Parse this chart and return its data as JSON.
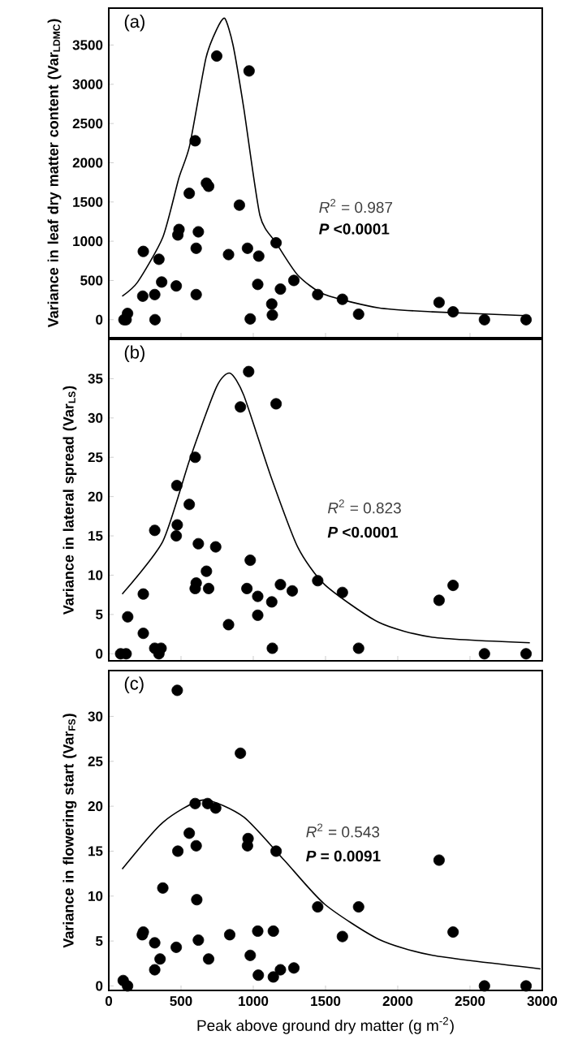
{
  "chart_data": [
    {
      "type": "scatter",
      "ylabel": "Variance in leaf dry matter content (Var$_{LDMC}$)",
      "xlim": [
        0,
        3000
      ],
      "ylim": [
        -230,
        3970
      ],
      "xticks": [
        0,
        500,
        1000,
        1500,
        2000,
        2500,
        3000
      ],
      "yticks": [
        0,
        500,
        1000,
        1500,
        2000,
        2500,
        3000,
        3500
      ],
      "tick_labels": "y",
      "annotations": [
        "(a)",
        "*R*$^{2}$ = 0.987",
        "*P* <0.0001"
      ],
      "series": [
        {
          "marker": "circle",
          "color": "#000000",
          "x": [
            105,
            120,
            130,
            235,
            239,
            318,
            320,
            347,
            366,
            467,
            478,
            486,
            557,
            598,
            605,
            605,
            620,
            676,
            691,
            747,
            829,
            904,
            960,
            971,
            979,
            1031,
            1038,
            1128,
            1132,
            1158,
            1188,
            1281,
            1446,
            1617,
            1729,
            2286,
            2383,
            2600,
            2888
          ],
          "values": [
            0,
            0,
            80,
            300,
            870,
            320,
            0,
            770,
            480,
            430,
            1080,
            1150,
            1610,
            2280,
            910,
            320,
            1120,
            1740,
            1700,
            3360,
            830,
            1460,
            910,
            3170,
            10,
            450,
            810,
            200,
            60,
            980,
            390,
            500,
            320,
            260,
            70,
            220,
            100,
            0,
            0
          ]
        },
        {
          "type": "line",
          "marker": "none",
          "color": "#000000",
          "x": [
            93,
            200,
            374,
            486,
            560,
            672,
            747,
            803,
            860,
            934,
            1046,
            1158,
            1307,
            1494,
            1868,
            2241,
            2914
          ],
          "values": [
            300,
            480,
            1050,
            1810,
            2220,
            3330,
            3700,
            3840,
            3500,
            2700,
            1330,
            980,
            570,
            320,
            150,
            100,
            50
          ]
        }
      ]
    },
    {
      "type": "scatter",
      "ylabel": "Variance in lateral spread (Var$_{LS}$)",
      "xlim": [
        0,
        3000
      ],
      "ylim": [
        -0.9,
        40
      ],
      "xticks": [
        0,
        500,
        1000,
        1500,
        2000,
        2500,
        3000
      ],
      "yticks": [
        0,
        5,
        10,
        15,
        20,
        25,
        30,
        35
      ],
      "tick_labels": "y",
      "annotations": [
        "(b)",
        "*R*$^{2}$ = 0.823",
        "*P* <0.0001"
      ],
      "series": [
        {
          "marker": "circle",
          "color": "#000000",
          "x": [
            82,
            120,
            131,
            239,
            239,
            318,
            318,
            347,
            362,
            467,
            471,
            474,
            557,
            598,
            598,
            605,
            620,
            676,
            691,
            740,
            829,
            911,
            956,
            968,
            979,
            1031,
            1031,
            1128,
            1132,
            1158,
            1188,
            1270,
            1446,
            1617,
            1729,
            2286,
            2383,
            2600,
            2888
          ],
          "values": [
            0,
            0,
            4.7,
            7.6,
            2.6,
            15.7,
            0.7,
            0,
            0.7,
            15,
            21.4,
            16.4,
            19,
            25,
            8.3,
            9,
            14,
            10.5,
            8.3,
            13.6,
            3.7,
            31.4,
            8.3,
            35.9,
            11.9,
            7.3,
            4.9,
            6.6,
            0.7,
            31.8,
            8.8,
            8,
            9.3,
            7.8,
            0.7,
            6.8,
            8.7,
            0,
            0
          ]
        },
        {
          "type": "line",
          "marker": "none",
          "color": "#000000",
          "x": [
            93,
            374,
            560,
            747,
            840,
            934,
            1121,
            1307,
            1494,
            1868,
            2241,
            2914
          ],
          "values": [
            7.6,
            14.3,
            24.7,
            34,
            35.7,
            32.9,
            22.6,
            13.6,
            8.8,
            4,
            2.1,
            1.4
          ]
        }
      ]
    },
    {
      "type": "scatter",
      "xlabel": "Peak above ground dry matter (g m$^{-2}$)",
      "ylabel": "Variance in flowering start (Var$_{FS}$)",
      "xlim": [
        0,
        3000
      ],
      "ylim": [
        -0.5,
        35.1
      ],
      "xticks": [
        0,
        500,
        1000,
        1500,
        2000,
        2500,
        3000
      ],
      "yticks": [
        0,
        5,
        10,
        15,
        20,
        25,
        30
      ],
      "annotations": [
        "(c)",
        "*R*$^{2}$ = 0.543",
        "*P* = 0.0091"
      ],
      "series": [
        {
          "marker": "circle",
          "color": "#000000",
          "x": [
            100,
            130,
            232,
            239,
            318,
            318,
            355,
            374,
            467,
            474,
            478,
            557,
            598,
            605,
            609,
            620,
            684,
            691,
            740,
            837,
            911,
            960,
            964,
            979,
            1031,
            1035,
            1139,
            1139,
            1158,
            1188,
            1281,
            1446,
            1617,
            1729,
            2286,
            2383,
            2600,
            2888
          ],
          "values": [
            0.6,
            0,
            5.7,
            6,
            4.8,
            1.8,
            3,
            10.9,
            4.3,
            32.9,
            15,
            17,
            20.3,
            15.6,
            9.6,
            5.1,
            20.3,
            3,
            19.8,
            5.7,
            25.9,
            15.6,
            16.4,
            3.4,
            6.1,
            1.2,
            6.1,
            1,
            15,
            1.8,
            2,
            8.8,
            5.5,
            8.8,
            14,
            6,
            0,
            0
          ]
        },
        {
          "type": "line",
          "marker": "none",
          "color": "#000000",
          "x": [
            93,
            374,
            654,
            934,
            1214,
            1494,
            1868,
            2241,
            2988
          ],
          "values": [
            13,
            18.2,
            20.7,
            18.8,
            14,
            9.1,
            5.2,
            3.4,
            1.9
          ]
        }
      ]
    }
  ]
}
